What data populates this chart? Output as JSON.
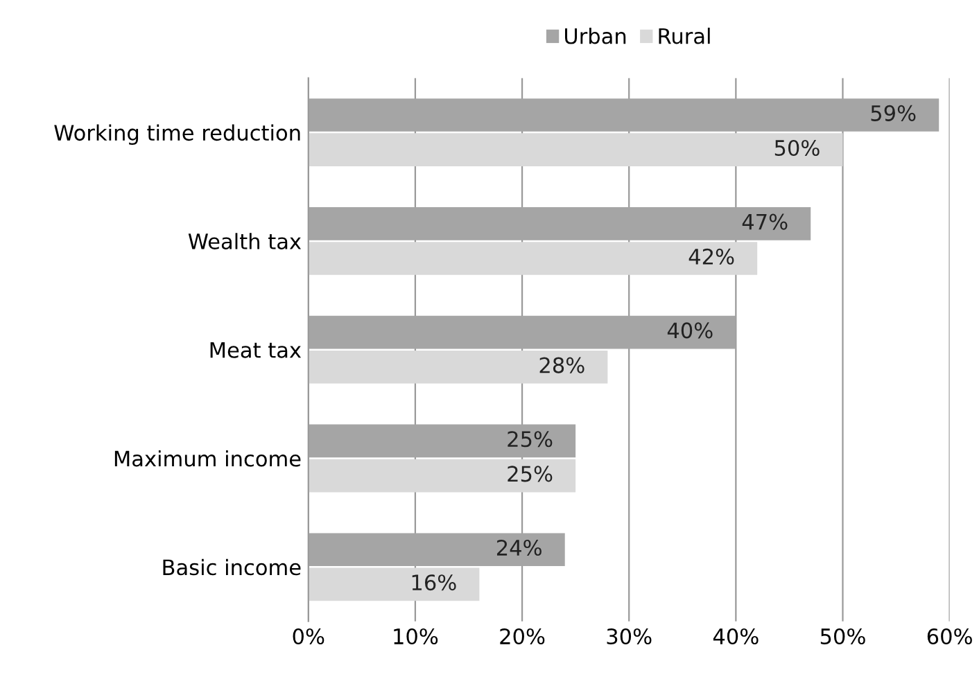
{
  "chart_data": {
    "type": "bar",
    "orientation": "horizontal",
    "categories": [
      "Working time reduction",
      "Wealth tax",
      "Meat tax",
      "Maximum income",
      "Basic income"
    ],
    "series": [
      {
        "name": "Urban",
        "color": "#a5a5a5",
        "values": [
          59,
          47,
          40,
          25,
          24
        ],
        "value_labels": [
          "59%",
          "47%",
          "40%",
          "25%",
          "24%"
        ]
      },
      {
        "name": "Rural",
        "color": "#d9d9d9",
        "values": [
          50,
          42,
          28,
          25,
          16
        ],
        "value_labels": [
          "50%",
          "42%",
          "28%",
          "25%",
          "16%"
        ]
      }
    ],
    "xlim": [
      0,
      60
    ],
    "xticks": [
      {
        "value": 0,
        "label": "0%"
      },
      {
        "value": 10,
        "label": "10%"
      },
      {
        "value": 20,
        "label": "20%"
      },
      {
        "value": 30,
        "label": "30%"
      },
      {
        "value": 40,
        "label": "40%"
      },
      {
        "value": 50,
        "label": "50%"
      },
      {
        "value": 60,
        "label": "60%"
      }
    ],
    "grid": "x",
    "legend": "top"
  }
}
